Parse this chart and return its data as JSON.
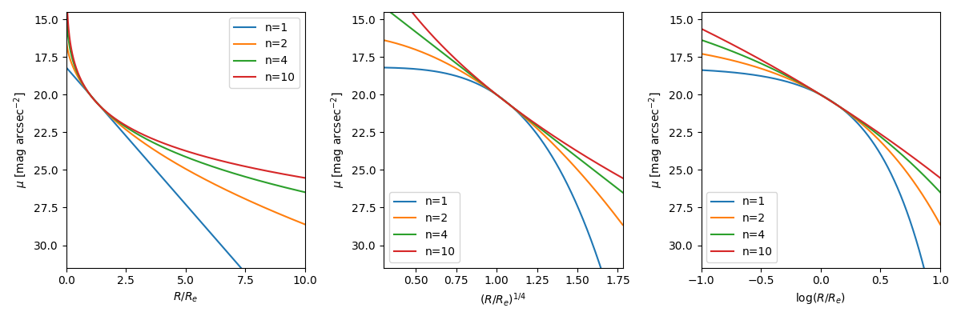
{
  "n_values": [
    1,
    2,
    4,
    10
  ],
  "colors": [
    "#1f77b4",
    "#ff7f0e",
    "#2ca02c",
    "#d62728"
  ],
  "labels": [
    "n=1",
    "n=2",
    "n=4",
    "n=10"
  ],
  "mu_e": 20.0,
  "ylim": [
    31.5,
    14.5
  ],
  "yticks": [
    15.0,
    17.5,
    20.0,
    22.5,
    25.0,
    27.5,
    30.0
  ],
  "panel1_xlabel": "$R/R_e$",
  "panel1_xlim": [
    0.0,
    10.0
  ],
  "panel1_xticks": [
    0.0,
    2.5,
    5.0,
    7.5,
    10.0
  ],
  "panel2_xlabel": "$(R/R_e)^{1/4}$",
  "panel2_xlim": [
    0.3,
    1.78
  ],
  "panel3_xlabel": "$\\log(R/R_e)$",
  "panel3_xlim": [
    -1.0,
    1.0
  ],
  "ylabel": "$\\mu$ [mag arcsec$^{-2}$]",
  "legend_loc1": "upper right",
  "legend_loc2": "lower left",
  "legend_loc3": "lower left"
}
